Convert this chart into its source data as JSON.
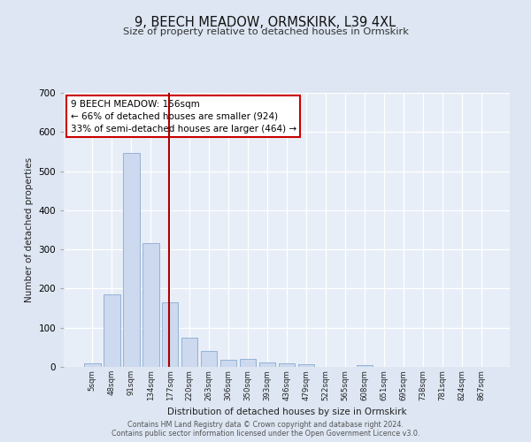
{
  "title": "9, BEECH MEADOW, ORMSKIRK, L39 4XL",
  "subtitle": "Size of property relative to detached houses in Ormskirk",
  "xlabel": "Distribution of detached houses by size in Ormskirk",
  "ylabel": "Number of detached properties",
  "bar_labels": [
    "5sqm",
    "48sqm",
    "91sqm",
    "134sqm",
    "177sqm",
    "220sqm",
    "263sqm",
    "306sqm",
    "350sqm",
    "393sqm",
    "436sqm",
    "479sqm",
    "522sqm",
    "565sqm",
    "608sqm",
    "651sqm",
    "695sqm",
    "738sqm",
    "781sqm",
    "824sqm",
    "867sqm"
  ],
  "bar_values": [
    8,
    186,
    546,
    316,
    165,
    75,
    40,
    18,
    20,
    12,
    10,
    7,
    0,
    0,
    5,
    0,
    0,
    0,
    0,
    0,
    0
  ],
  "bar_color": "#ccd9ee",
  "bar_edge_color": "#8aaad0",
  "ylim": [
    0,
    700
  ],
  "yticks": [
    0,
    100,
    200,
    300,
    400,
    500,
    600,
    700
  ],
  "vline_x_index": 3.925,
  "vline_color": "#aa0000",
  "annotation_title": "9 BEECH MEADOW: 156sqm",
  "annotation_line1": "← 66% of detached houses are smaller (924)",
  "annotation_line2": "33% of semi-detached houses are larger (464) →",
  "annotation_box_color": "#cc0000",
  "footer1": "Contains HM Land Registry data © Crown copyright and database right 2024.",
  "footer2": "Contains public sector information licensed under the Open Government Licence v3.0.",
  "bg_color": "#dde6f2",
  "plot_bg_color": "#e8eef8"
}
